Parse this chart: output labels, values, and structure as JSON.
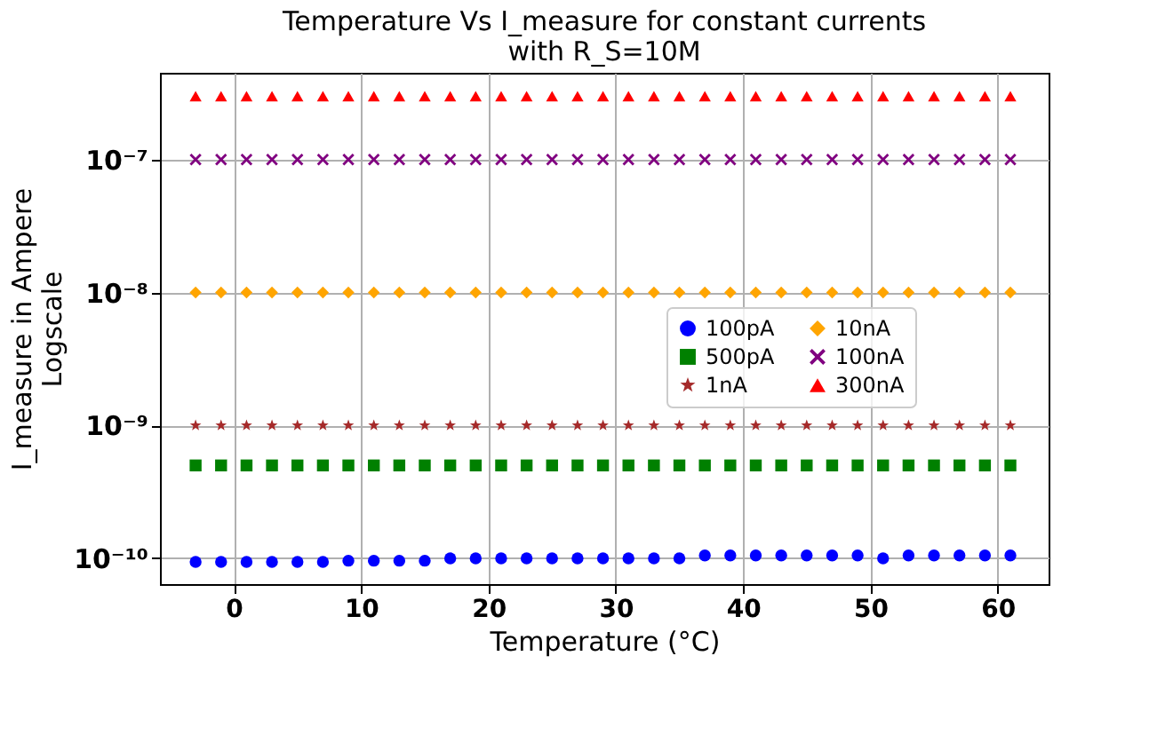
{
  "chart_data": {
    "type": "scatter",
    "title": [
      "Temperature Vs I_measure for constant currents",
      "with R_S=10M"
    ],
    "xlabel": "Temperature (°C)",
    "ylabel": [
      "I_measure in Ampere",
      "Logscale"
    ],
    "x": [
      -3,
      -1,
      1,
      3,
      5,
      7,
      9,
      11,
      13,
      15,
      17,
      19,
      21,
      23,
      25,
      27,
      29,
      31,
      33,
      35,
      37,
      39,
      41,
      43,
      45,
      47,
      49,
      51,
      53,
      55,
      57,
      59,
      61
    ],
    "series": [
      {
        "name": "100pA",
        "color": "#0000ff",
        "marker": "circle",
        "values": [
          9.4e-11,
          9.4e-11,
          9.4e-11,
          9.4e-11,
          9.4e-11,
          9.4e-11,
          9.6e-11,
          9.6e-11,
          9.6e-11,
          9.6e-11,
          1e-10,
          1e-10,
          1e-10,
          1e-10,
          1e-10,
          1e-10,
          1e-10,
          1e-10,
          1e-10,
          1e-10,
          1.05e-10,
          1.05e-10,
          1.05e-10,
          1.05e-10,
          1.05e-10,
          1.05e-10,
          1.05e-10,
          1e-10,
          1.05e-10,
          1.05e-10,
          1.05e-10,
          1.05e-10,
          1.05e-10
        ]
      },
      {
        "name": "500pA",
        "color": "#008000",
        "marker": "square",
        "values": [
          5e-10,
          5e-10,
          5e-10,
          5e-10,
          5e-10,
          5e-10,
          5e-10,
          5e-10,
          5e-10,
          5e-10,
          5e-10,
          5e-10,
          5e-10,
          5e-10,
          5e-10,
          5e-10,
          5e-10,
          5e-10,
          5e-10,
          5e-10,
          5e-10,
          5e-10,
          5e-10,
          5e-10,
          5e-10,
          5e-10,
          5e-10,
          5e-10,
          5e-10,
          5e-10,
          5e-10,
          5e-10,
          5e-10
        ]
      },
      {
        "name": "1nA",
        "color": "#a52a2a",
        "marker": "star",
        "values": [
          1e-09,
          1e-09,
          1e-09,
          1e-09,
          1e-09,
          1e-09,
          1e-09,
          1e-09,
          1e-09,
          1e-09,
          1e-09,
          1e-09,
          1e-09,
          1e-09,
          1e-09,
          1e-09,
          1e-09,
          1e-09,
          1e-09,
          1e-09,
          1e-09,
          1e-09,
          1e-09,
          1e-09,
          1e-09,
          1e-09,
          1e-09,
          1e-09,
          1e-09,
          1e-09,
          1e-09,
          1e-09,
          1e-09
        ]
      },
      {
        "name": "10nA",
        "color": "#ffa500",
        "marker": "diamond",
        "values": [
          1e-08,
          1e-08,
          1e-08,
          1e-08,
          1e-08,
          1e-08,
          1e-08,
          1e-08,
          1e-08,
          1e-08,
          1e-08,
          1e-08,
          1e-08,
          1e-08,
          1e-08,
          1e-08,
          1e-08,
          1e-08,
          1e-08,
          1e-08,
          1e-08,
          1e-08,
          1e-08,
          1e-08,
          1e-08,
          1e-08,
          1e-08,
          1e-08,
          1e-08,
          1e-08,
          1e-08,
          1e-08,
          1e-08
        ]
      },
      {
        "name": "100nA",
        "color": "#800080",
        "marker": "cross",
        "values": [
          1e-07,
          1e-07,
          1e-07,
          1e-07,
          1e-07,
          1e-07,
          1e-07,
          1e-07,
          1e-07,
          1e-07,
          1e-07,
          1e-07,
          1e-07,
          1e-07,
          1e-07,
          1e-07,
          1e-07,
          1e-07,
          1e-07,
          1e-07,
          1e-07,
          1e-07,
          1e-07,
          1e-07,
          1e-07,
          1e-07,
          1e-07,
          1e-07,
          1e-07,
          1e-07,
          1e-07,
          1e-07,
          1e-07
        ]
      },
      {
        "name": "300nA",
        "color": "#ff0000",
        "marker": "triangle",
        "values": [
          3e-07,
          3e-07,
          3e-07,
          3e-07,
          3e-07,
          3e-07,
          3e-07,
          3e-07,
          3e-07,
          3e-07,
          3e-07,
          3e-07,
          3e-07,
          3e-07,
          3e-07,
          3e-07,
          3e-07,
          3e-07,
          3e-07,
          3e-07,
          3e-07,
          3e-07,
          3e-07,
          3e-07,
          3e-07,
          3e-07,
          3e-07,
          3e-07,
          3e-07,
          3e-07,
          3e-07,
          3e-07,
          3e-07
        ]
      }
    ],
    "xlim": [
      -5.8,
      64
    ],
    "xticks": [
      0,
      10,
      20,
      30,
      40,
      50,
      60
    ],
    "ylim": [
      6.4e-11,
      4.5e-07
    ],
    "yticks": [
      {
        "value": 1e-10,
        "label": "10⁻¹⁰"
      },
      {
        "value": 1e-09,
        "label": "10⁻⁹"
      },
      {
        "value": 1e-08,
        "label": "10⁻⁸"
      },
      {
        "value": 1e-07,
        "label": "10⁻⁷"
      }
    ],
    "log": "y",
    "grid": true,
    "legend": "right"
  }
}
